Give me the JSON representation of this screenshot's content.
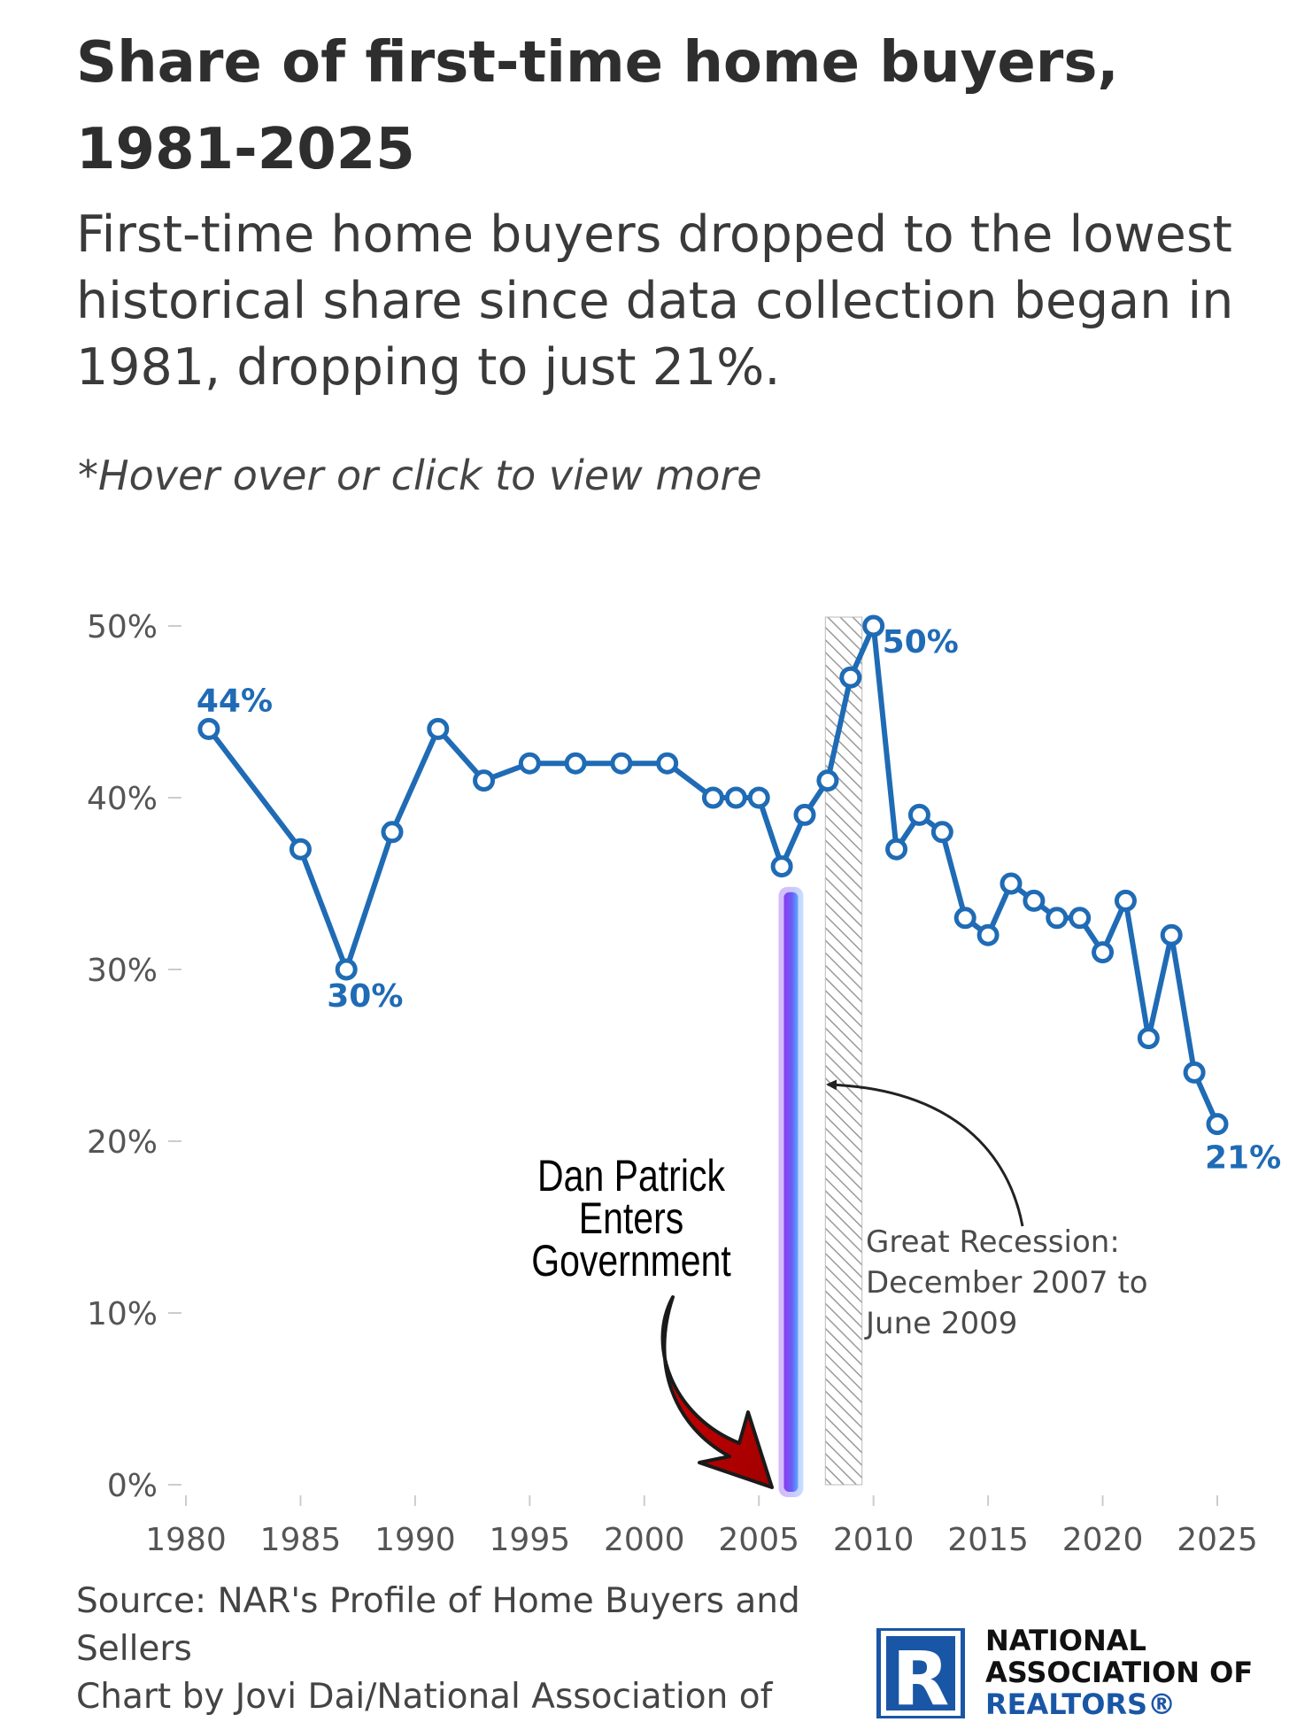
{
  "header": {
    "title": "Share of first-time home buyers, 1981-2025",
    "subtitle": "First-time home buyers dropped to the lowest historical share since data collection began in 1981, dropping to just 21%.",
    "hint": "*Hover over or click to view more"
  },
  "chart_data": {
    "type": "line",
    "title": "Share of first-time home buyers, 1981-2025",
    "xlabel": "",
    "ylabel": "",
    "xlim": [
      1980,
      2026
    ],
    "ylim": [
      0,
      50
    ],
    "x_ticks": [
      "1980",
      "1985",
      "1990",
      "1995",
      "2000",
      "2005",
      "2010",
      "2015",
      "2020",
      "2025"
    ],
    "y_ticks": [
      "0%",
      "10%",
      "20%",
      "30%",
      "40%",
      "50%"
    ],
    "grid": false,
    "series": [
      {
        "color": "#1f6bb5",
        "points": [
          {
            "x": 1981,
            "y": 44
          },
          {
            "x": 1985,
            "y": 37
          },
          {
            "x": 1987,
            "y": 30
          },
          {
            "x": 1989,
            "y": 38
          },
          {
            "x": 1991,
            "y": 44
          },
          {
            "x": 1993,
            "y": 41
          },
          {
            "x": 1995,
            "y": 42
          },
          {
            "x": 1997,
            "y": 42
          },
          {
            "x": 1999,
            "y": 42
          },
          {
            "x": 2001,
            "y": 42
          },
          {
            "x": 2003,
            "y": 40
          },
          {
            "x": 2004,
            "y": 40
          },
          {
            "x": 2005,
            "y": 40
          },
          {
            "x": 2006,
            "y": 36
          },
          {
            "x": 2007,
            "y": 39
          },
          {
            "x": 2008,
            "y": 41
          },
          {
            "x": 2009,
            "y": 47
          },
          {
            "x": 2010,
            "y": 50
          },
          {
            "x": 2011,
            "y": 37
          },
          {
            "x": 2012,
            "y": 39
          },
          {
            "x": 2013,
            "y": 38
          },
          {
            "x": 2014,
            "y": 33
          },
          {
            "x": 2015,
            "y": 32
          },
          {
            "x": 2016,
            "y": 35
          },
          {
            "x": 2017,
            "y": 34
          },
          {
            "x": 2018,
            "y": 33
          },
          {
            "x": 2019,
            "y": 33
          },
          {
            "x": 2020,
            "y": 31
          },
          {
            "x": 2021,
            "y": 34
          },
          {
            "x": 2022,
            "y": 26
          },
          {
            "x": 2023,
            "y": 32
          },
          {
            "x": 2024,
            "y": 24
          },
          {
            "x": 2025,
            "y": 21
          }
        ]
      }
    ],
    "data_labels": [
      {
        "text": "44%",
        "x": 1981,
        "y": 44
      },
      {
        "text": "30%",
        "x": 1987,
        "y": 30
      },
      {
        "text": "50%",
        "x": 2010,
        "y": 50
      },
      {
        "text": "21%",
        "x": 2025,
        "y": 21
      }
    ],
    "shaded_region": {
      "x_start": 2007.9,
      "x_end": 2009.5,
      "pattern": "diagonal-hatch"
    },
    "annotations": [
      {
        "text": "Great Recession: December 2007 to June 2009"
      },
      {
        "text": "Dan Patrick Enters Government"
      }
    ],
    "highlight_line": {
      "x": 2006.4,
      "y_from": 0,
      "y_to": 34.5,
      "color": "#7a4cf0"
    }
  },
  "footer": {
    "source": "Source: NAR's Profile of Home Buyers and Sellers",
    "credit": "Chart by Jovi Dai/National Association of"
  },
  "logo": {
    "line1": "NATIONAL",
    "line2": "ASSOCIATION OF",
    "line3": "REALTORS®",
    "mark": "R",
    "color": "#1a56a6"
  }
}
